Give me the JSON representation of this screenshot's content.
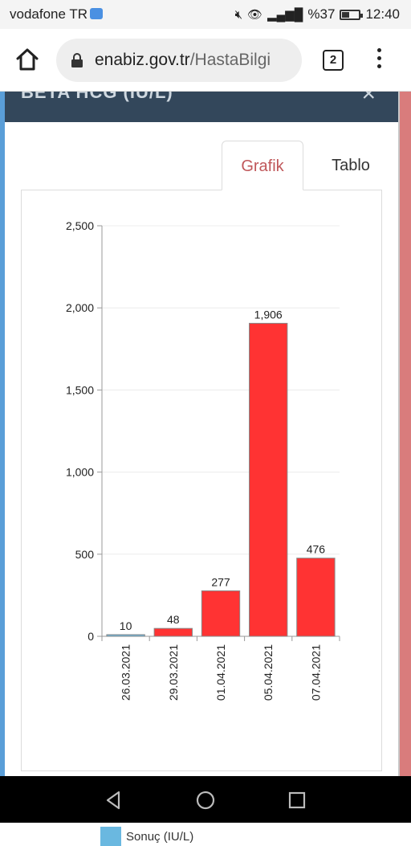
{
  "status_bar": {
    "carrier": "vodafone TR",
    "battery_text": "%37",
    "battery_level": 0.37,
    "time": "12:40"
  },
  "browser": {
    "url_domain": "enabiz.gov.tr",
    "url_path": "/HastaBilgi",
    "tab_count": "2"
  },
  "modal": {
    "header_title": "BETA HCG (IU/L)",
    "close_symbol": "×"
  },
  "tabs": [
    {
      "label": "Grafik",
      "active": true
    },
    {
      "label": "Tablo",
      "active": false
    }
  ],
  "colors": {
    "bar_fill": "#ff3333",
    "legend_swatch": "#6ab8e0",
    "active_tab_text": "#c0575a",
    "header_bg": "#33475b"
  },
  "chart_data": {
    "type": "bar",
    "categories": [
      "26.03.2021",
      "29.03.2021",
      "01.04.2021",
      "05.04.2021",
      "07.04.2021"
    ],
    "values": [
      10,
      48,
      277,
      1906,
      476
    ],
    "value_labels": [
      "10",
      "48",
      "277",
      "1,906",
      "476"
    ],
    "ylim": [
      0,
      2500
    ],
    "yticks": [
      0,
      500,
      1000,
      1500,
      2000,
      2500
    ],
    "ytick_labels": [
      "0",
      "500",
      "1,000",
      "1,500",
      "2,000",
      "2,500"
    ],
    "grid": true,
    "legend": [
      {
        "name": "Sonuç (IU/L)",
        "color": "#6ab8e0"
      }
    ],
    "legend_position": "bottom-left"
  }
}
